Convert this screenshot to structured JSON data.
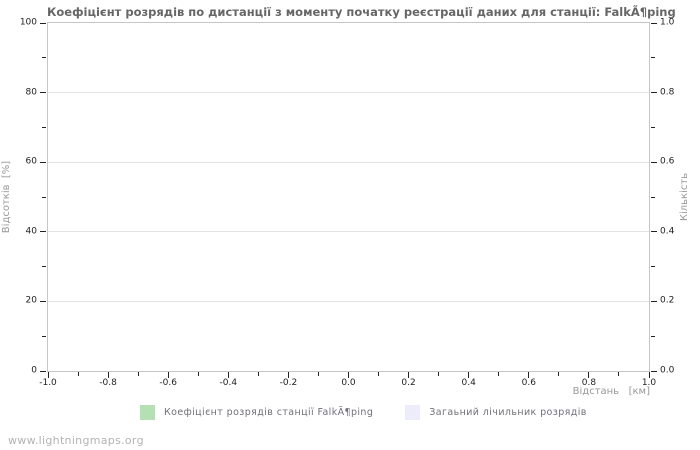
{
  "chart_data": {
    "type": "line",
    "title": "Коефіцієнт розрядів по дистанції з моменту початку реєстрації даних для станції: FalkÃ¶ping",
    "series": [],
    "note": "empty plot area - no data points rendered",
    "x_axis": {
      "label": "Відстань   [км]",
      "min": -1.0,
      "max": 1.0,
      "tick_step": 0.2,
      "ticks": [
        "-1.0",
        "-0.8",
        "-0.6",
        "-0.4",
        "-0.2",
        "0.0",
        "0.2",
        "0.4",
        "0.6",
        "0.8",
        "1.0"
      ],
      "minor_ticks_between": 1
    },
    "y_axis_left": {
      "label": "Відсотків  [%]",
      "min": 0,
      "max": 100,
      "tick_step": 20,
      "ticks": [
        "0",
        "20",
        "40",
        "60",
        "80",
        "100"
      ],
      "minor_ticks_between": 1
    },
    "y_axis_right": {
      "label": "Кількість",
      "min": 0.0,
      "max": 1.0,
      "tick_step": 0.2,
      "ticks": [
        "0.0",
        "0.2",
        "0.4",
        "0.6",
        "0.8",
        "1.0"
      ],
      "minor_ticks_between": 1
    },
    "grid": "horizontal major only",
    "legend_position": "bottom",
    "legend": [
      {
        "label": "Коефіцієнт розрядів станції FalkÃ¶ping",
        "color": "#b4e0b4"
      },
      {
        "label": "Загаьний лічильник розрядів",
        "color": "#ececfa"
      }
    ]
  },
  "watermark": "www.lightningmaps.org",
  "colors": {
    "background": "#ffffff",
    "title_text": "#666666",
    "axis_label_text": "#999999",
    "tick_label_text": "#222222",
    "tick_mark": "#222222",
    "plot_border": "#c6c6c6",
    "gridline": "#e3e3e3",
    "legend_text": "#70707a",
    "watermark_text": "#b3b3b3"
  }
}
